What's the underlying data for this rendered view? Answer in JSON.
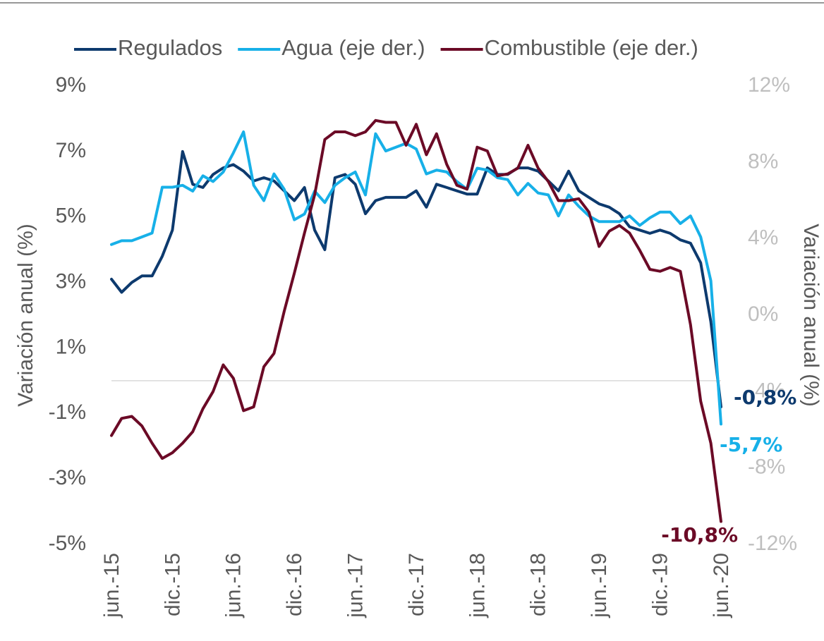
{
  "chart_data": {
    "type": "line",
    "categories": [
      "jun.-15",
      null,
      null,
      null,
      null,
      null,
      "dic.-15",
      null,
      null,
      null,
      null,
      null,
      "jun.-16",
      null,
      null,
      null,
      null,
      null,
      "dic.-16",
      null,
      null,
      null,
      null,
      null,
      "jun.-17",
      null,
      null,
      null,
      null,
      null,
      "dic.-17",
      null,
      null,
      null,
      null,
      null,
      "jun.-18",
      null,
      null,
      null,
      null,
      null,
      "dic.-18",
      null,
      null,
      null,
      null,
      null,
      "jun.-19",
      null,
      null,
      null,
      null,
      null,
      "dic.-19",
      null,
      null,
      null,
      null,
      null,
      "jun.-20"
    ],
    "ylabel": "Variación anual (%)",
    "y2label": "Variación anual (%)",
    "ylim": [
      -5,
      9
    ],
    "yticks": [
      {
        "value": -5,
        "label": "-5%"
      },
      {
        "value": -3,
        "label": "-3%"
      },
      {
        "value": -1,
        "label": "-1%"
      },
      {
        "value": 1,
        "label": "1%"
      },
      {
        "value": 3,
        "label": "3%"
      },
      {
        "value": 5,
        "label": "5%"
      },
      {
        "value": 7,
        "label": "7%"
      },
      {
        "value": 9,
        "label": "9%"
      }
    ],
    "y2lim": [
      -12,
      12
    ],
    "y2ticks": [
      {
        "value": -12,
        "label": "-12%"
      },
      {
        "value": -8,
        "label": "-8%"
      },
      {
        "value": -4,
        "label": "-4%"
      },
      {
        "value": 0,
        "label": "0%"
      },
      {
        "value": 4,
        "label": "4%"
      },
      {
        "value": 8,
        "label": "8%"
      },
      {
        "value": 12,
        "label": "12%"
      }
    ],
    "zero_line": true,
    "legend": "top",
    "series": [
      {
        "name": "Regulados",
        "color": "#0d3a6e",
        "axis": "y",
        "values": [
          3.1,
          2.7,
          3.0,
          3.2,
          3.2,
          3.8,
          4.6,
          7.0,
          6.0,
          5.9,
          6.3,
          6.5,
          6.6,
          6.4,
          6.1,
          6.2,
          6.1,
          5.8,
          5.5,
          5.9,
          4.6,
          4.0,
          6.2,
          6.3,
          6.0,
          5.1,
          5.5,
          5.6,
          5.6,
          5.6,
          5.8,
          5.3,
          6.0,
          5.9,
          5.8,
          5.7,
          5.7,
          6.5,
          6.3,
          6.3,
          6.5,
          6.5,
          6.4,
          6.1,
          5.8,
          6.4,
          5.8,
          5.6,
          5.4,
          5.3,
          5.1,
          4.7,
          4.6,
          4.5,
          4.6,
          4.5,
          4.3,
          4.2,
          3.6,
          1.8,
          -0.8
        ],
        "value_labels": [
          null,
          null,
          null,
          null,
          null,
          null,
          null,
          null,
          null,
          null,
          null,
          null,
          null,
          null,
          null,
          null,
          null,
          null,
          null,
          null,
          null,
          null,
          null,
          null,
          null,
          null,
          null,
          null,
          null,
          null,
          null,
          null,
          null,
          null,
          null,
          null,
          null,
          null,
          null,
          null,
          null,
          null,
          null,
          null,
          null,
          null,
          null,
          null,
          null,
          null,
          null,
          null,
          null,
          null,
          null,
          null,
          null,
          null,
          null,
          null,
          "-0,8%"
        ]
      },
      {
        "name": "Agua (eje der.)",
        "color": "#17b0e8",
        "axis": "y2",
        "values": [
          3.7,
          3.9,
          3.9,
          4.1,
          4.3,
          6.7,
          6.7,
          6.8,
          6.5,
          7.3,
          7.0,
          7.5,
          8.5,
          9.6,
          6.8,
          6.0,
          7.4,
          6.6,
          5.0,
          5.3,
          6.5,
          5.9,
          6.8,
          7.2,
          7.5,
          6.3,
          9.5,
          8.6,
          8.8,
          9.0,
          8.7,
          7.4,
          7.6,
          7.5,
          7.0,
          6.6,
          7.7,
          7.6,
          7.2,
          7.1,
          6.3,
          6.9,
          6.4,
          6.3,
          5.2,
          6.3,
          5.7,
          5.2,
          4.9,
          4.9,
          4.9,
          5.2,
          4.7,
          5.1,
          5.4,
          5.4,
          4.8,
          5.2,
          4.1,
          1.8,
          -5.7
        ],
        "value_labels": [
          null,
          null,
          null,
          null,
          null,
          null,
          null,
          null,
          null,
          null,
          null,
          null,
          null,
          null,
          null,
          null,
          null,
          null,
          null,
          null,
          null,
          null,
          null,
          null,
          null,
          null,
          null,
          null,
          null,
          null,
          null,
          null,
          null,
          null,
          null,
          null,
          null,
          null,
          null,
          null,
          null,
          null,
          null,
          null,
          null,
          null,
          null,
          null,
          null,
          null,
          null,
          null,
          null,
          null,
          null,
          null,
          null,
          null,
          null,
          null,
          "-5,7%"
        ]
      },
      {
        "name": "Combustible (eje der.)",
        "color": "#6b0a26",
        "axis": "y2",
        "values": [
          -6.3,
          -5.4,
          -5.3,
          -5.8,
          -6.7,
          -7.5,
          -7.2,
          -6.7,
          -6.1,
          -4.9,
          -4.0,
          -2.6,
          -3.3,
          -5.0,
          -4.8,
          -2.7,
          -2.0,
          0.2,
          2.2,
          4.3,
          6.3,
          9.2,
          9.6,
          9.6,
          9.4,
          9.6,
          10.2,
          10.1,
          10.1,
          8.9,
          10.0,
          8.4,
          9.5,
          7.9,
          6.8,
          6.6,
          8.8,
          8.6,
          7.3,
          7.4,
          7.7,
          8.9,
          7.7,
          7.0,
          6.0,
          6.0,
          6.1,
          5.4,
          3.6,
          4.4,
          4.7,
          4.3,
          3.4,
          2.4,
          2.3,
          2.5,
          2.3,
          -0.5,
          -4.5,
          -6.7,
          -10.8
        ],
        "value_labels": [
          null,
          null,
          null,
          null,
          null,
          null,
          null,
          null,
          null,
          null,
          null,
          null,
          null,
          null,
          null,
          null,
          null,
          null,
          null,
          null,
          null,
          null,
          null,
          null,
          null,
          null,
          null,
          null,
          null,
          null,
          null,
          null,
          null,
          null,
          null,
          null,
          null,
          null,
          null,
          null,
          null,
          null,
          null,
          null,
          null,
          null,
          null,
          null,
          null,
          null,
          null,
          null,
          null,
          null,
          null,
          null,
          null,
          null,
          null,
          null,
          "-10,8%"
        ]
      }
    ]
  }
}
